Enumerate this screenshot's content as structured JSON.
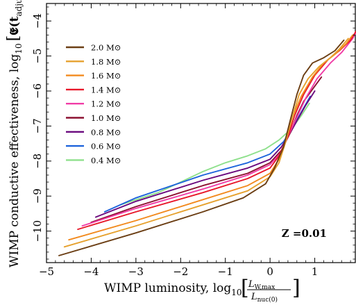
{
  "chart_data": {
    "type": "line",
    "title": "",
    "xlabel": "WIMP luminosity, log",
    "xlabel_sub": "10",
    "xlabel_frac_num": "L",
    "xlabel_frac_num_sub": "W,max",
    "xlabel_frac_den": "L",
    "xlabel_frac_den_sub": "nuc(0)",
    "ylabel": "WIMP conductive effectiveness, log",
    "ylabel_sub": "10",
    "ylabel_arg": "𝕰(t",
    "ylabel_arg_sub": "adjust",
    "ylabel_arg_close": ")",
    "xlim": [
      -5,
      2
    ],
    "ylim": [
      -10.9,
      -3.5
    ],
    "xticks": [
      -5,
      -4,
      -3,
      -2,
      -1,
      0,
      1,
      2
    ],
    "xtick_labels": [
      "−5",
      "−4",
      "−3",
      "−2",
      "−1",
      "0",
      "1",
      "2"
    ],
    "yticks": [
      -10,
      -9,
      -8,
      -7,
      -6,
      -5,
      -4
    ],
    "ytick_labels": [
      "−10",
      "−9",
      "−8",
      "−7",
      "−6",
      "−5",
      "−4"
    ],
    "legend_position": "upper-left",
    "annotation": "Z =0.01",
    "series": [
      {
        "name": "2.0 M⊙",
        "color": "#6b3e14",
        "points": [
          [
            -4.72,
            -10.7
          ],
          [
            -3,
            -10.05
          ],
          [
            -1.5,
            -9.45
          ],
          [
            -0.6,
            -9.05
          ],
          [
            -0.1,
            -8.65
          ],
          [
            0.1,
            -8.2
          ],
          [
            0.3,
            -7.6
          ],
          [
            0.45,
            -6.85
          ],
          [
            0.6,
            -6.1
          ],
          [
            0.75,
            -5.55
          ],
          [
            0.95,
            -5.2
          ],
          [
            1.2,
            -5.05
          ],
          [
            1.45,
            -4.85
          ],
          [
            1.65,
            -4.55
          ]
        ]
      },
      {
        "name": "1.8 M⊙",
        "color": "#e6a12e",
        "points": [
          [
            -4.6,
            -10.45
          ],
          [
            -3,
            -9.85
          ],
          [
            -1.5,
            -9.25
          ],
          [
            -0.5,
            -8.85
          ],
          [
            0,
            -8.45
          ],
          [
            0.2,
            -8.05
          ],
          [
            0.35,
            -7.45
          ],
          [
            0.5,
            -6.75
          ],
          [
            0.65,
            -6.1
          ],
          [
            0.85,
            -5.65
          ],
          [
            1.1,
            -5.3
          ],
          [
            1.35,
            -5.05
          ],
          [
            1.55,
            -4.8
          ],
          [
            1.75,
            -4.5
          ]
        ]
      },
      {
        "name": "1.6 M⊙",
        "color": "#f28a1e",
        "points": [
          [
            -4.5,
            -10.25
          ],
          [
            -3,
            -9.7
          ],
          [
            -1.5,
            -9.1
          ],
          [
            -0.5,
            -8.7
          ],
          [
            0,
            -8.35
          ],
          [
            0.2,
            -7.95
          ],
          [
            0.35,
            -7.4
          ],
          [
            0.5,
            -6.75
          ],
          [
            0.7,
            -6.15
          ],
          [
            0.95,
            -5.6
          ],
          [
            1.2,
            -5.2
          ],
          [
            1.45,
            -4.95
          ],
          [
            1.7,
            -4.65
          ],
          [
            1.85,
            -4.4
          ]
        ]
      },
      {
        "name": "1.4 M⊙",
        "color": "#e8182a",
        "points": [
          [
            -4.3,
            -9.95
          ],
          [
            -3,
            -9.45
          ],
          [
            -1.5,
            -8.9
          ],
          [
            -0.5,
            -8.5
          ],
          [
            0,
            -8.2
          ],
          [
            0.2,
            -7.85
          ],
          [
            0.4,
            -7.3
          ],
          [
            0.55,
            -6.7
          ],
          [
            0.75,
            -6.1
          ],
          [
            1.0,
            -5.55
          ],
          [
            1.3,
            -5.1
          ],
          [
            1.55,
            -4.85
          ],
          [
            1.8,
            -4.55
          ],
          [
            1.92,
            -4.3
          ]
        ]
      },
      {
        "name": "1.2 M⊙",
        "color": "#f03ca6",
        "points": [
          [
            -4.2,
            -9.85
          ],
          [
            -3,
            -9.35
          ],
          [
            -1.5,
            -8.8
          ],
          [
            -0.5,
            -8.4
          ],
          [
            0,
            -8.1
          ],
          [
            0.25,
            -7.75
          ],
          [
            0.4,
            -7.3
          ],
          [
            0.6,
            -6.75
          ],
          [
            0.8,
            -6.2
          ],
          [
            1.05,
            -5.65
          ],
          [
            1.35,
            -5.2
          ],
          [
            1.6,
            -4.9
          ],
          [
            1.85,
            -4.5
          ],
          [
            1.97,
            -4.2
          ]
        ]
      },
      {
        "name": "1.0 M⊙",
        "color": "#8c1030",
        "points": [
          [
            -4.0,
            -9.75
          ],
          [
            -3,
            -9.3
          ],
          [
            -1.5,
            -8.7
          ],
          [
            -0.5,
            -8.35
          ],
          [
            0,
            -8.05
          ],
          [
            0.25,
            -7.7
          ],
          [
            0.45,
            -7.2
          ],
          [
            0.6,
            -6.7
          ],
          [
            0.75,
            -6.3
          ],
          [
            0.95,
            -5.95
          ],
          [
            1.15,
            -5.6
          ]
        ]
      },
      {
        "name": "0.8 M⊙",
        "color": "#6a0a7e",
        "points": [
          [
            -3.9,
            -9.6
          ],
          [
            -3,
            -9.15
          ],
          [
            -1.5,
            -8.55
          ],
          [
            -0.5,
            -8.2
          ],
          [
            0,
            -7.95
          ],
          [
            0.25,
            -7.6
          ],
          [
            0.45,
            -7.2
          ],
          [
            0.6,
            -6.85
          ],
          [
            0.8,
            -6.4
          ],
          [
            1.0,
            -6.0
          ]
        ]
      },
      {
        "name": "0.6 M⊙",
        "color": "#1e64dc",
        "points": [
          [
            -3.7,
            -9.45
          ],
          [
            -3,
            -9.05
          ],
          [
            -1.5,
            -8.4
          ],
          [
            -0.5,
            -8.05
          ],
          [
            0,
            -7.8
          ],
          [
            0.3,
            -7.45
          ],
          [
            0.5,
            -7.05
          ],
          [
            0.7,
            -6.6
          ],
          [
            0.9,
            -6.15
          ]
        ]
      },
      {
        "name": "0.4 M⊙",
        "color": "#8ee08c",
        "points": [
          [
            -3.35,
            -9.25
          ],
          [
            -2.5,
            -8.9
          ],
          [
            -1.5,
            -8.3
          ],
          [
            -1.0,
            -8.05
          ],
          [
            -0.5,
            -7.85
          ],
          [
            -0.1,
            -7.65
          ],
          [
            0.2,
            -7.4
          ],
          [
            0.5,
            -7.05
          ],
          [
            0.7,
            -6.7
          ],
          [
            0.88,
            -6.35
          ]
        ]
      }
    ]
  }
}
